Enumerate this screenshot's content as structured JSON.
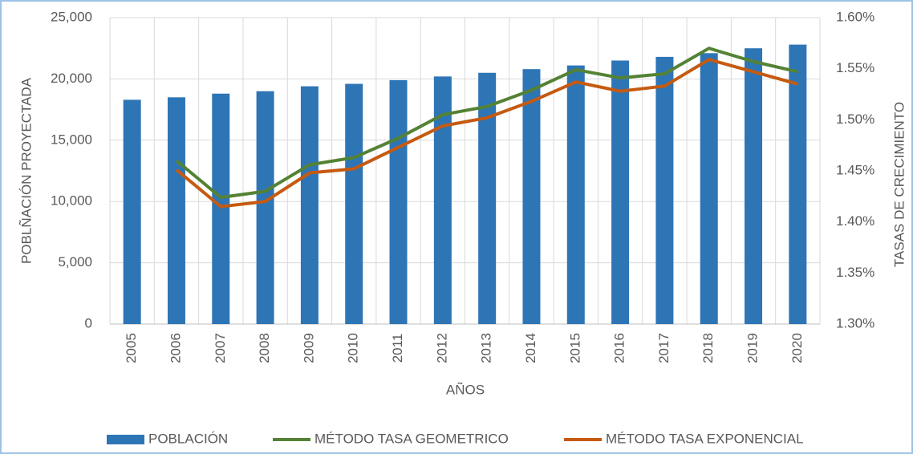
{
  "chart_data": {
    "type": "bar-line",
    "x_label": "AÑOS",
    "y_label": "POBLÑACIÓN PROYECTADA",
    "y2_label": "TASAS DE CRECIMIENTO",
    "categories": [
      "2005",
      "2006",
      "2007",
      "2008",
      "2009",
      "2010",
      "2011",
      "2012",
      "2013",
      "2014",
      "2015",
      "2016",
      "2017",
      "2018",
      "2019",
      "2020"
    ],
    "series": [
      {
        "name": "POBLACIÓN",
        "type": "bar",
        "color": "#2e75b6",
        "values": [
          18300,
          18500,
          18800,
          19000,
          19400,
          19600,
          19900,
          20200,
          20500,
          20800,
          21100,
          21500,
          21800,
          22100,
          22500,
          22800
        ]
      },
      {
        "name": "MÉTODO TASA GEOMETRICO",
        "type": "line",
        "axis": "y2",
        "color": "#548235",
        "values": [
          null,
          1.46,
          1.424,
          1.43,
          1.456,
          1.463,
          1.482,
          1.505,
          1.513,
          1.529,
          1.549,
          1.541,
          1.545,
          1.57,
          1.557,
          1.547
        ]
      },
      {
        "name": "MÉTODO TASA EXPONENCIAL",
        "type": "line",
        "axis": "y2",
        "color": "#c55a11",
        "values": [
          null,
          1.451,
          1.415,
          1.42,
          1.448,
          1.452,
          1.473,
          1.494,
          1.502,
          1.518,
          1.537,
          1.528,
          1.533,
          1.559,
          1.547,
          1.535
        ]
      }
    ],
    "ylim": [
      0,
      25000
    ],
    "yticks": [
      0,
      {
        "value": 5000,
        "label": "5,000"
      },
      {
        "value": 10000,
        "label": "10,000"
      },
      {
        "value": 15000,
        "label": "15,000"
      },
      {
        "value": 20000,
        "label": "20,000"
      },
      {
        "value": 25000,
        "label": "25,000"
      }
    ],
    "y2lim": [
      1.3,
      1.6
    ],
    "y2ticks": [
      {
        "value": 1.3,
        "label": "1.30%"
      },
      {
        "value": 1.35,
        "label": "1.35%"
      },
      {
        "value": 1.4,
        "label": "1.40%"
      },
      {
        "value": 1.45,
        "label": "1.45%"
      },
      {
        "value": 1.5,
        "label": "1.50%"
      },
      {
        "value": 1.55,
        "label": "1.55%"
      },
      {
        "value": 1.6,
        "label": "1.60%"
      }
    ],
    "grid": true,
    "legend": "bottom"
  }
}
